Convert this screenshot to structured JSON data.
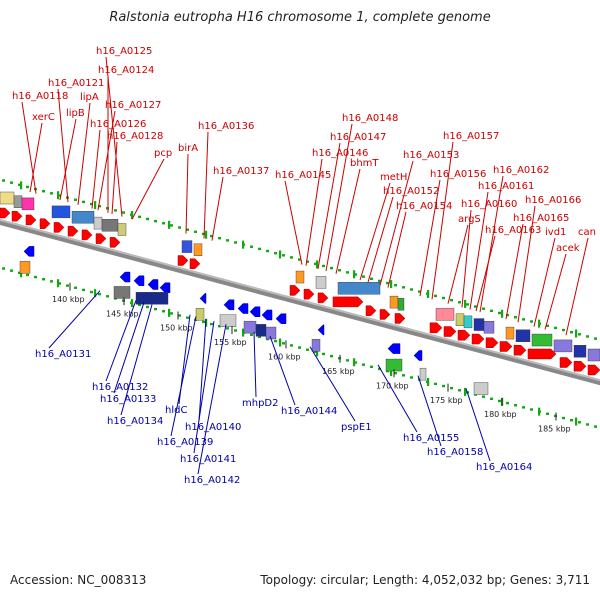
{
  "title": "Ralstonia eutropha H16 chromosome 1, complete genome",
  "footer": {
    "accession": "Accession: NC_008313",
    "summary": "Topology: circular; Length: 4,052,032 bp; Genes: 3,711"
  },
  "colors": {
    "forward_label": "#cc0000",
    "reverse_label": "#0000aa",
    "forward_arrow": "#ff0000",
    "reverse_arrow": "#0000ff",
    "backbone": "#888888",
    "dots": "#11aa11"
  },
  "ticks": [
    "140 kbp",
    "145 kbp",
    "150 kbp",
    "155 kbp",
    "160 kbp",
    "165 kbp",
    "170 kbp",
    "175 kbp",
    "180 kbp",
    "185 kbp"
  ],
  "forward_genes": [
    "h16_A0125",
    "h16_A0124",
    "h16_A0121",
    "h16_A0118",
    "lipA",
    "h16_A0127",
    "lipB",
    "xerC",
    "h16_A0126",
    "h16_A0128",
    "pcp",
    "birA",
    "h16_A0136",
    "h16_A0137",
    "h16_A0148",
    "h16_A0147",
    "h16_A0146",
    "h16_A0145",
    "bhmT",
    "metH",
    "h16_A0153",
    "h16_A0152",
    "h16_A0154",
    "h16_A0157",
    "h16_A0156",
    "argS",
    "h16_A0160",
    "h16_A0162",
    "h16_A0161",
    "h16_A0163",
    "h16_A0166",
    "h16_A0165",
    "ivd1",
    "acek",
    "can"
  ],
  "reverse_genes": [
    "h16_A0131",
    "h16_A0132",
    "h16_A0133",
    "h16_A0134",
    "hldC",
    "h16_A0140",
    "h16_A0139",
    "h16_A0141",
    "h16_A0142",
    "mhpD2",
    "h16_A0144",
    "pspE1",
    "h16_A0155",
    "h16_A0158",
    "h16_A0164"
  ]
}
